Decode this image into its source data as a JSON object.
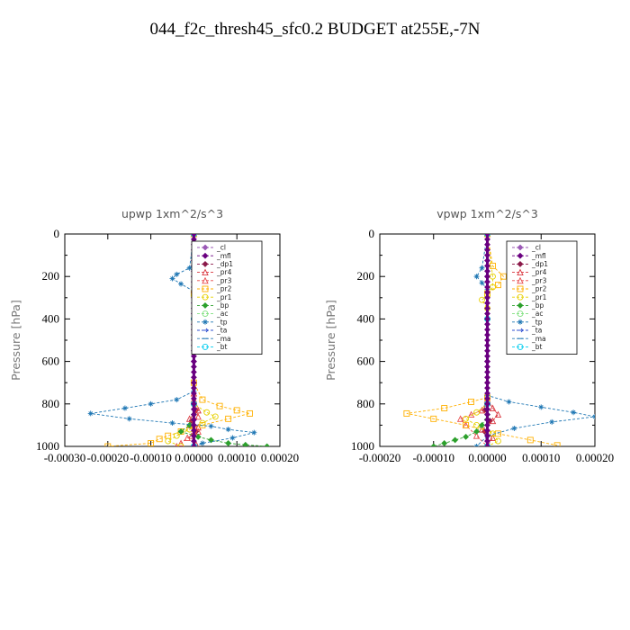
{
  "page_title": "044_f2c_thresh45_sfc0.2  BUDGET at255E,-7N",
  "chart_data": [
    {
      "type": "line",
      "title": "upwp   1xm^2/s^3",
      "ylabel": "Pressure  [hPa]",
      "xlabel": "",
      "xlim": [
        -0.0003,
        0.0002
      ],
      "ylim": [
        1000,
        0
      ],
      "xticks": [
        -0.0003,
        -0.0002,
        -0.0001,
        0.0,
        0.0001,
        0.0002
      ],
      "xtick_labels": [
        "-0.00030",
        "-0.00020",
        "-0.00010",
        "0.00000",
        "0.00010",
        "0.00020"
      ],
      "yticks": [
        0,
        200,
        400,
        600,
        800,
        1000
      ],
      "ytick_labels": [
        "0",
        "200",
        "400",
        "600",
        "800",
        "1000"
      ],
      "legend_position": "top-right",
      "series": [
        {
          "name": "_cl",
          "color": "#9b59b6",
          "marker": "diamond",
          "x": [
            0,
            0,
            0,
            0,
            0,
            0
          ],
          "y": [
            0,
            200,
            400,
            600,
            800,
            1000
          ]
        },
        {
          "name": "_mfl",
          "color": "#6a0080",
          "marker": "diamond",
          "x": [
            0,
            0,
            0,
            0,
            0,
            0
          ],
          "y": [
            0,
            200,
            400,
            600,
            800,
            1000
          ]
        },
        {
          "name": "_dp1",
          "color": "#8b1a4a",
          "marker": "diamond",
          "x": [
            0,
            0,
            5e-06,
            -5e-06,
            5e-06,
            0
          ],
          "y": [
            0,
            700,
            830,
            880,
            930,
            1000
          ]
        },
        {
          "name": "_pr4",
          "color": "#d9363e",
          "marker": "triangle",
          "x": [
            0,
            0,
            1e-05,
            -1e-05,
            1e-05,
            -5e-06,
            5e-06
          ],
          "y": [
            0,
            750,
            830,
            870,
            910,
            950,
            990
          ]
        },
        {
          "name": "_pr3",
          "color": "#e84a4a",
          "marker": "triangle",
          "x": [
            0,
            0,
            1e-05,
            -1e-05,
            1e-05,
            -1.5e-05,
            -3e-05,
            -4e-05
          ],
          "y": [
            0,
            780,
            860,
            900,
            930,
            960,
            985,
            1000
          ]
        },
        {
          "name": "_pr2",
          "color": "#ffb000",
          "marker": "square",
          "x": [
            0,
            1.5e-05,
            3e-05,
            2e-05,
            0,
            0,
            2e-05,
            6e-05,
            0.0001,
            0.00013,
            8e-05,
            2e-05,
            -3e-05,
            -6e-05,
            -8e-05,
            -0.0001,
            -0.0002
          ],
          "y": [
            0,
            150,
            200,
            240,
            280,
            700,
            780,
            810,
            830,
            845,
            870,
            900,
            930,
            950,
            965,
            985,
            1000
          ]
        },
        {
          "name": "_pr1",
          "color": "#e6d000",
          "marker": "circle",
          "x": [
            0,
            1e-05,
            2e-05,
            1e-05,
            0,
            0,
            3e-05,
            5e-05,
            2e-05,
            -1e-05,
            -4e-05,
            -6e-05,
            -3e-05
          ],
          "y": [
            0,
            170,
            210,
            250,
            290,
            800,
            840,
            860,
            890,
            920,
            950,
            975,
            1000
          ]
        },
        {
          "name": "_bp",
          "color": "#2ca02c",
          "marker": "diamond",
          "x": [
            0,
            0,
            -1e-05,
            -3e-05,
            1e-05,
            4e-05,
            8e-05,
            0.00012,
            0.00017
          ],
          "y": [
            0,
            850,
            900,
            930,
            955,
            970,
            985,
            993,
            1000
          ]
        },
        {
          "name": "_ac",
          "color": "#7fe07f",
          "marker": "circle",
          "x": [
            0,
            0,
            0,
            0
          ],
          "y": [
            0,
            400,
            800,
            1000
          ]
        },
        {
          "name": "_tp",
          "color": "#1f77b4",
          "marker": "star",
          "x": [
            0,
            -1e-05,
            -4e-05,
            -5e-05,
            -3e-05,
            0,
            0,
            -4e-05,
            -0.0001,
            -0.00016,
            -0.00024,
            -0.00015,
            -5e-05,
            4e-05,
            8e-05,
            0.00014,
            9e-05,
            2e-05,
            0
          ],
          "y": [
            0,
            160,
            190,
            210,
            235,
            270,
            740,
            780,
            800,
            820,
            845,
            870,
            890,
            905,
            920,
            935,
            960,
            985,
            1000
          ]
        },
        {
          "name": "_ta",
          "color": "#3050d0",
          "marker": "arrow",
          "x": [
            0,
            0,
            0,
            0
          ],
          "y": [
            0,
            400,
            800,
            1000
          ]
        },
        {
          "name": "_ma",
          "color": "#2c7fb8",
          "marker": "dash",
          "x": [
            0,
            0,
            0,
            0
          ],
          "y": [
            0,
            400,
            800,
            1000
          ]
        },
        {
          "name": "_bt",
          "color": "#00ccee",
          "marker": "circle",
          "x": [
            0,
            0,
            0,
            0
          ],
          "y": [
            0,
            400,
            800,
            1000
          ]
        }
      ]
    },
    {
      "type": "line",
      "title": "vpwp   1xm^2/s^3",
      "ylabel": "Pressure  [hPa]",
      "xlabel": "",
      "xlim": [
        -0.0002,
        0.0002
      ],
      "ylim": [
        1000,
        0
      ],
      "xticks": [
        -0.0002,
        -0.0001,
        0.0,
        0.0001,
        0.0002
      ],
      "xtick_labels": [
        "-0.00020",
        "-0.00010",
        "0.00000",
        "0.00010",
        "0.00020"
      ],
      "yticks": [
        0,
        200,
        400,
        600,
        800,
        1000
      ],
      "ytick_labels": [
        "0",
        "200",
        "400",
        "600",
        "800",
        "1000"
      ],
      "legend_position": "top-right",
      "series": [
        {
          "name": "_cl",
          "color": "#9b59b6",
          "marker": "diamond",
          "x": [
            0,
            0,
            0,
            0,
            0,
            0
          ],
          "y": [
            0,
            200,
            400,
            600,
            800,
            1000
          ]
        },
        {
          "name": "_mfl",
          "color": "#6a0080",
          "marker": "diamond",
          "x": [
            0,
            0,
            0,
            0,
            0,
            0
          ],
          "y": [
            0,
            200,
            400,
            600,
            800,
            1000
          ]
        },
        {
          "name": "_dp1",
          "color": "#8b1a4a",
          "marker": "diamond",
          "x": [
            0,
            0,
            -5e-06,
            5e-06,
            -5e-06,
            0
          ],
          "y": [
            0,
            700,
            830,
            880,
            930,
            1000
          ]
        },
        {
          "name": "_pr4",
          "color": "#d9363e",
          "marker": "triangle",
          "x": [
            0,
            0,
            1e-05,
            2e-05,
            1e-05,
            -1e-05,
            1e-05,
            0
          ],
          "y": [
            0,
            780,
            820,
            850,
            880,
            920,
            960,
            1000
          ]
        },
        {
          "name": "_pr3",
          "color": "#e84a4a",
          "marker": "triangle",
          "x": [
            0,
            0,
            -1e-05,
            -3e-05,
            -5e-05,
            -4e-05,
            -2e-05,
            0
          ],
          "y": [
            0,
            780,
            830,
            850,
            870,
            900,
            950,
            1000
          ]
        },
        {
          "name": "_pr2",
          "color": "#ffb000",
          "marker": "square",
          "x": [
            0,
            1e-05,
            3e-05,
            2e-05,
            0,
            0,
            -3e-05,
            -8e-05,
            -0.00015,
            -0.0001,
            -4e-05,
            2e-05,
            8e-05,
            0.00013
          ],
          "y": [
            0,
            150,
            200,
            240,
            280,
            770,
            790,
            820,
            845,
            870,
            900,
            940,
            970,
            995
          ]
        },
        {
          "name": "_pr1",
          "color": "#e6d000",
          "marker": "circle",
          "x": [
            0,
            1e-05,
            1e-05,
            0,
            -1e-05,
            0,
            0,
            -2e-05,
            -4e-05,
            -2e-05,
            1e-05,
            2e-05,
            0
          ],
          "y": [
            0,
            200,
            250,
            290,
            310,
            350,
            800,
            840,
            870,
            900,
            940,
            975,
            1000
          ]
        },
        {
          "name": "_bp",
          "color": "#2ca02c",
          "marker": "diamond",
          "x": [
            0,
            0,
            -1e-05,
            -2e-05,
            -4e-05,
            -6e-05,
            -8e-05,
            -0.0001
          ],
          "y": [
            0,
            850,
            900,
            930,
            955,
            970,
            985,
            1000
          ]
        },
        {
          "name": "_ac",
          "color": "#7fe07f",
          "marker": "circle",
          "x": [
            0,
            0,
            0,
            0
          ],
          "y": [
            0,
            400,
            800,
            1000
          ]
        },
        {
          "name": "_tp",
          "color": "#1f77b4",
          "marker": "star",
          "x": [
            0,
            -1e-05,
            -2e-05,
            -1e-05,
            0,
            0,
            4e-05,
            0.0001,
            0.00016,
            0.0002,
            0.00012,
            5e-05,
            0,
            -2e-05
          ],
          "y": [
            0,
            160,
            200,
            230,
            260,
            760,
            790,
            815,
            840,
            860,
            885,
            915,
            950,
            1000
          ]
        },
        {
          "name": "_ta",
          "color": "#3050d0",
          "marker": "arrow",
          "x": [
            0,
            0,
            0,
            0
          ],
          "y": [
            0,
            400,
            800,
            1000
          ]
        },
        {
          "name": "_ma",
          "color": "#2c7fb8",
          "marker": "dash",
          "x": [
            0,
            0,
            0,
            0
          ],
          "y": [
            0,
            400,
            800,
            1000
          ]
        },
        {
          "name": "_bt",
          "color": "#00ccee",
          "marker": "circle",
          "x": [
            0,
            0,
            0,
            0
          ],
          "y": [
            0,
            400,
            800,
            1000
          ]
        }
      ]
    }
  ]
}
